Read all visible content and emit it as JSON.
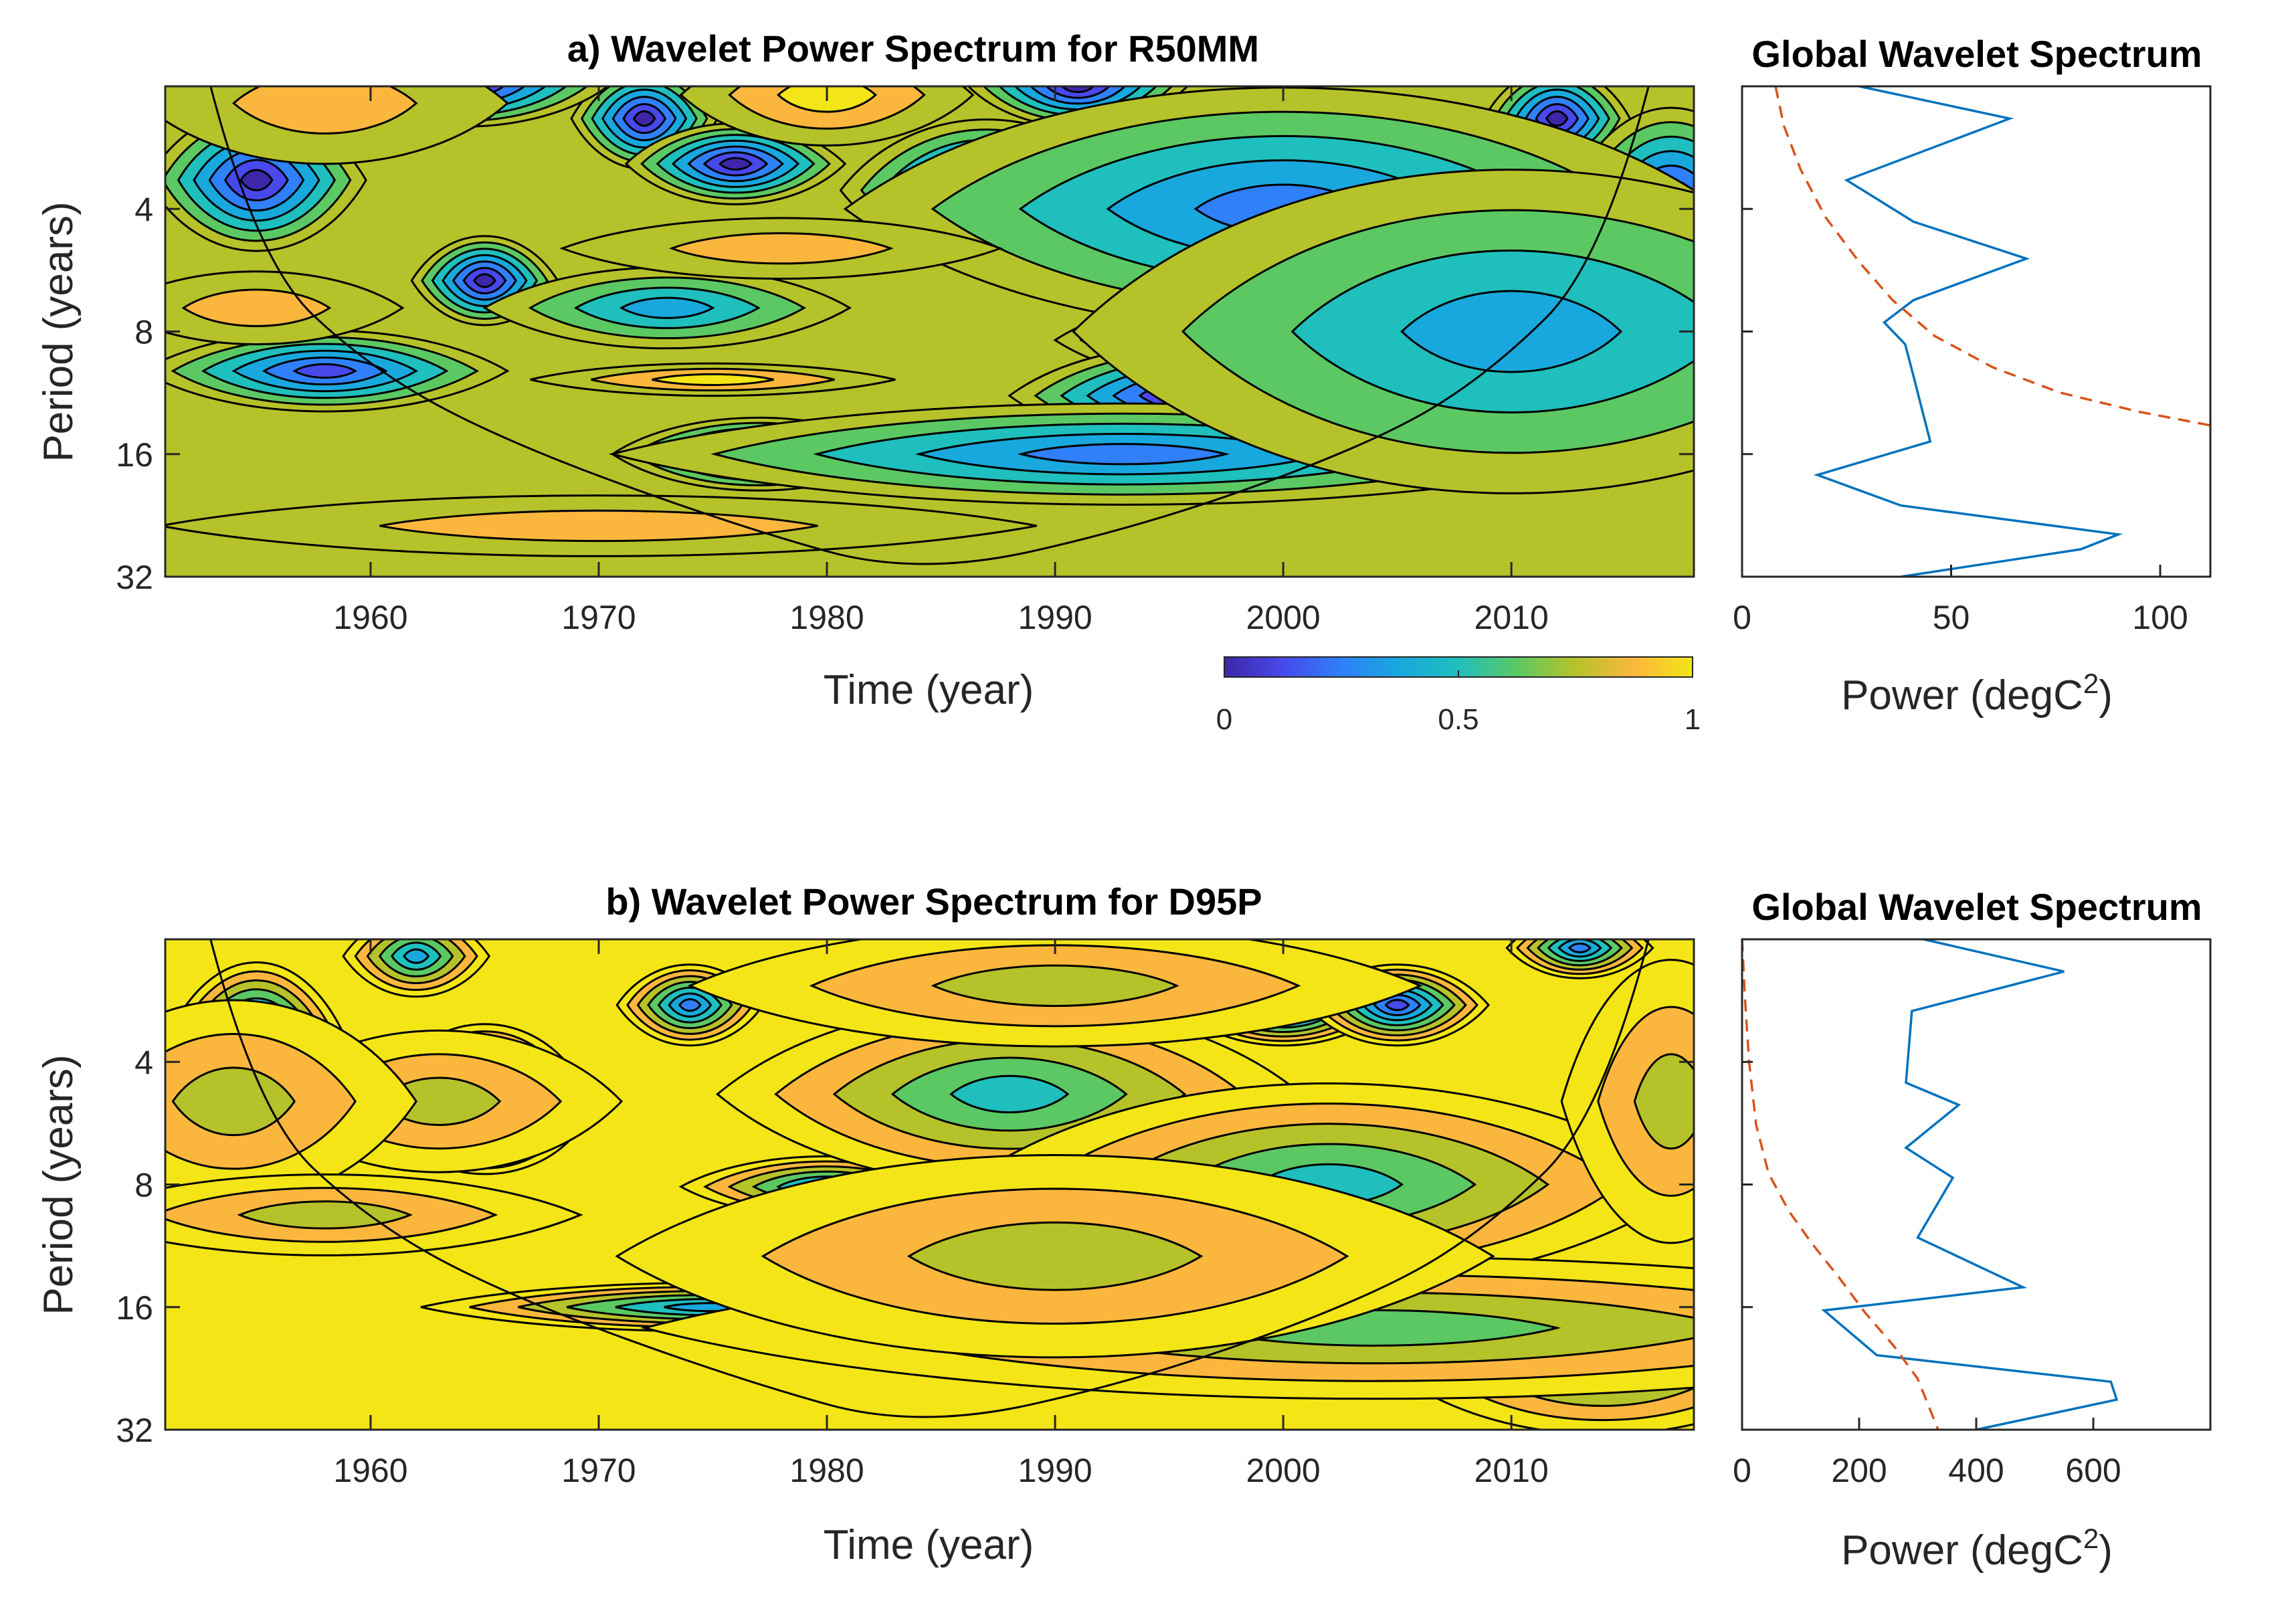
{
  "chart_data": [
    {
      "id": "a_wps",
      "type": "heatmap",
      "title": "a) Wavelet Power Spectrum for  R50MM",
      "xlabel": "Time (year)",
      "ylabel": "Period (years)",
      "xlim": [
        1951,
        2018
      ],
      "ylim": [
        2,
        32
      ],
      "yscale": "log2",
      "xticks": [
        "1960",
        "1970",
        "1980",
        "1990",
        "2000",
        "2010"
      ],
      "yticks": [
        "4",
        "8",
        "16",
        "32"
      ],
      "colormap": "parula",
      "colors": [
        "#3e26a8",
        "#4749eb",
        "#2f80f9",
        "#19a8dd",
        "#1fbfbd",
        "#5cc863",
        "#b6c229",
        "#fbb73d",
        "#f3e516"
      ],
      "lobes": [
        {
          "t": 1977,
          "p": 16,
          "v": 0.0,
          "at": 4,
          "ap": 0.18
        },
        {
          "t": 1999,
          "p": 16,
          "v": 0.0,
          "at": 6,
          "ap": 0.18
        },
        {
          "t": 1998,
          "p": 8.4,
          "v": 0.0,
          "at": 5,
          "ap": 0.22
        },
        {
          "t": 1996,
          "p": 11.5,
          "v": 0.05,
          "at": 5,
          "ap": 0.25
        },
        {
          "t": 1965,
          "p": 6,
          "v": 0.05,
          "at": 2,
          "ap": 0.22
        },
        {
          "t": 1955,
          "p": 3.4,
          "v": 0.1,
          "at": 3,
          "ap": 0.35
        },
        {
          "t": 1958,
          "p": 10,
          "v": 0.15,
          "at": 5,
          "ap": 0.2
        },
        {
          "t": 1987,
          "p": 3.6,
          "v": 0.1,
          "at": 4,
          "ap": 0.35
        },
        {
          "t": 2004,
          "p": 3,
          "v": 0.0,
          "at": 3,
          "ap": 0.3
        },
        {
          "t": 2012,
          "p": 2.4,
          "v": 0.05,
          "at": 2,
          "ap": 0.25
        },
        {
          "t": 1972,
          "p": 2.4,
          "v": 0.05,
          "at": 2,
          "ap": 0.25
        },
        {
          "t": 1976,
          "p": 3.1,
          "v": 0.1,
          "at": 3,
          "ap": 0.2
        },
        {
          "t": 1964,
          "p": 2,
          "v": 0.1,
          "at": 4,
          "ap": 0.2
        },
        {
          "t": 1991,
          "p": 2,
          "v": 0.1,
          "at": 3,
          "ap": 0.2
        },
        {
          "t": 2017,
          "p": 4,
          "v": 0.1,
          "at": 3,
          "ap": 0.5
        },
        {
          "t": 1973,
          "p": 7,
          "v": 0.35,
          "at": 5,
          "ap": 0.2
        },
        {
          "t": 2000,
          "p": 4,
          "v": 0.3,
          "at": 12,
          "ap": 0.6
        },
        {
          "t": 2010,
          "p": 8,
          "v": 0.4,
          "at": 12,
          "ap": 0.8
        },
        {
          "t": 1993,
          "p": 16,
          "v": 0.3,
          "at": 14,
          "ap": 0.25
        },
        {
          "t": 1955,
          "p": 7,
          "v": 0.85,
          "at": 4,
          "ap": 0.18
        },
        {
          "t": 1978,
          "p": 5,
          "v": 0.85,
          "at": 6,
          "ap": 0.15
        },
        {
          "t": 1980,
          "p": 2.1,
          "v": 0.95,
          "at": 4,
          "ap": 0.25
        },
        {
          "t": 1975,
          "p": 10.5,
          "v": 0.9,
          "at": 5,
          "ap": 0.08
        },
        {
          "t": 1970,
          "p": 24,
          "v": 0.85,
          "at": 12,
          "ap": 0.15
        },
        {
          "t": 1958,
          "p": 2.2,
          "v": 0.85,
          "at": 5,
          "ap": 0.3
        }
      ],
      "lobe_base": 0.75,
      "coi": [
        [
          1951,
          0.75
        ],
        [
          1955,
          5.4
        ],
        [
          1960,
          9.9
        ],
        [
          1966,
          15
        ],
        [
          1976,
          24
        ],
        [
          1984,
          32
        ],
        [
          1994,
          24
        ],
        [
          2004,
          15
        ],
        [
          2009,
          10.2
        ],
        [
          2014,
          5.4
        ],
        [
          2018,
          0.75
        ]
      ]
    },
    {
      "id": "a_gws",
      "type": "line",
      "title": "Global Wavelet Spectrum",
      "xlabel": "Power (degC",
      "xlabel_sup": "2",
      "xlabel_end": ")",
      "xlim": [
        0,
        112
      ],
      "ylim": [
        2,
        32
      ],
      "xticks": [
        "0",
        "50",
        "100"
      ],
      "xtick_values": [
        0,
        50,
        100
      ],
      "series": [
        {
          "name": "global",
          "color": "#0072bd",
          "dash": "",
          "points": [
            [
              28,
              2
            ],
            [
              64,
              2.4
            ],
            [
              25,
              3.4
            ],
            [
              41,
              4.3
            ],
            [
              68,
              5.3
            ],
            [
              41,
              6.7
            ],
            [
              34,
              7.6
            ],
            [
              39,
              8.6
            ],
            [
              41,
              10.3
            ],
            [
              43,
              12.4
            ],
            [
              45,
              14.9
            ],
            [
              18,
              18
            ],
            [
              38,
              21.4
            ],
            [
              90,
              25.2
            ],
            [
              81,
              27.4
            ],
            [
              38,
              32
            ]
          ]
        },
        {
          "name": "significance",
          "color": "#d95319",
          "dash": "18,12",
          "points": [
            [
              8,
              2
            ],
            [
              10,
              2.5
            ],
            [
              14,
              3.2
            ],
            [
              20,
              4.2
            ],
            [
              28,
              5.4
            ],
            [
              36,
              6.7
            ],
            [
              46,
              8.2
            ],
            [
              60,
              9.8
            ],
            [
              76,
              11.3
            ],
            [
              95,
              12.6
            ],
            [
              112,
              13.6
            ]
          ]
        }
      ]
    },
    {
      "id": "b_wps",
      "type": "heatmap",
      "title": "b) Wavelet Power Spectrum for  D95P",
      "xlabel": "Time (year)",
      "ylabel": "Period (years)",
      "xlim": [
        1951,
        2018
      ],
      "ylim": [
        2,
        32
      ],
      "yscale": "log2",
      "xticks": [
        "1960",
        "1970",
        "1980",
        "1990",
        "2000",
        "2010"
      ],
      "yticks": [
        "4",
        "8",
        "16",
        "32"
      ],
      "colormap": "parula",
      "colors": [
        "#3e26a8",
        "#4749eb",
        "#2f80f9",
        "#19a8dd",
        "#1fbfbd",
        "#5cc863",
        "#b6c229",
        "#fbb73d",
        "#f3e516"
      ],
      "lobes": [
        {
          "t": 1955,
          "p": 3.6,
          "v": 0.0,
          "at": 2.5,
          "ap": 0.4
        },
        {
          "t": 1958,
          "p": 9.5,
          "v": 0.05,
          "at": 5,
          "ap": 0.12
        },
        {
          "t": 1965,
          "p": 4.3,
          "v": 0.3,
          "at": 2.5,
          "ap": 0.25
        },
        {
          "t": 1965,
          "p": 6,
          "v": 0.3,
          "at": 2.5,
          "ap": 0.2
        },
        {
          "t": 1962,
          "p": 2.2,
          "v": 0.4,
          "at": 2,
          "ap": 0.2
        },
        {
          "t": 1974,
          "p": 2.9,
          "v": 0.3,
          "at": 2,
          "ap": 0.2
        },
        {
          "t": 1988,
          "p": 4.2,
          "v": 0.05,
          "at": 4,
          "ap": 0.25
        },
        {
          "t": 1984,
          "p": 6.1,
          "v": 0.3,
          "at": 3,
          "ap": 0.18
        },
        {
          "t": 1980,
          "p": 8.1,
          "v": 0.4,
          "at": 4,
          "ap": 0.15
        },
        {
          "t": 1991,
          "p": 3,
          "v": 0.1,
          "at": 2,
          "ap": 0.2
        },
        {
          "t": 2000,
          "p": 2.9,
          "v": 0.1,
          "at": 3,
          "ap": 0.2
        },
        {
          "t": 2005,
          "p": 2.9,
          "v": 0.2,
          "at": 2.5,
          "ap": 0.2
        },
        {
          "t": 2007,
          "p": 7.2,
          "v": 0.1,
          "at": 3,
          "ap": 0.15
        },
        {
          "t": 1997,
          "p": 8.2,
          "v": 0.3,
          "at": 6,
          "ap": 0.25
        },
        {
          "t": 1994,
          "p": 12,
          "v": 0.35,
          "at": 5,
          "ap": 0.2
        },
        {
          "t": 2002,
          "p": 16,
          "v": 0.3,
          "at": 6,
          "ap": 0.15
        },
        {
          "t": 1975,
          "p": 16,
          "v": 0.4,
          "at": 8,
          "ap": 0.12
        },
        {
          "t": 2013,
          "p": 2.1,
          "v": 0.3,
          "at": 2,
          "ap": 0.15
        },
        {
          "t": 1988,
          "p": 4.8,
          "v": 0.5,
          "at": 8,
          "ap": 0.45
        },
        {
          "t": 2002,
          "p": 8,
          "v": 0.55,
          "at": 10,
          "ap": 0.5
        },
        {
          "t": 2014,
          "p": 22,
          "v": 0.45,
          "at": 6,
          "ap": 0.35
        },
        {
          "t": 2004,
          "p": 18,
          "v": 0.6,
          "at": 20,
          "ap": 0.35
        },
        {
          "t": 1963,
          "p": 5,
          "v": 0.7,
          "at": 5,
          "ap": 0.35
        },
        {
          "t": 2017,
          "p": 5,
          "v": 0.7,
          "at": 3,
          "ap": 0.7
        },
        {
          "t": 1990,
          "p": 12,
          "v": 0.7,
          "at": 12,
          "ap": 0.5
        },
        {
          "t": 1990,
          "p": 2.6,
          "v": 0.7,
          "at": 10,
          "ap": 0.3
        },
        {
          "t": 1954,
          "p": 5,
          "v": 0.75,
          "at": 5,
          "ap": 0.5
        },
        {
          "t": 1958,
          "p": 9.5,
          "v": 0.75,
          "at": 7,
          "ap": 0.2
        }
      ],
      "lobe_base": 1.0,
      "coi": [
        [
          1951,
          0.75
        ],
        [
          1955,
          5.4
        ],
        [
          1960,
          9.9
        ],
        [
          1966,
          15
        ],
        [
          1976,
          24
        ],
        [
          1984,
          32
        ],
        [
          1994,
          24
        ],
        [
          2004,
          15
        ],
        [
          2009,
          10.2
        ],
        [
          2014,
          5.4
        ],
        [
          2018,
          0.75
        ]
      ]
    },
    {
      "id": "b_gws",
      "type": "line",
      "title": "Global Wavelet Spectrum",
      "xlabel": "Power (degC",
      "xlabel_sup": "2",
      "xlabel_end": ")",
      "xlim": [
        0,
        800
      ],
      "ylim": [
        2,
        32
      ],
      "xticks": [
        "0",
        "200",
        "400",
        "600"
      ],
      "xtick_values": [
        0,
        200,
        400,
        600
      ],
      "series": [
        {
          "name": "global",
          "color": "#0072bd",
          "dash": "",
          "points": [
            [
              310,
              2
            ],
            [
              550,
              2.4
            ],
            [
              290,
              3
            ],
            [
              280,
              4.5
            ],
            [
              370,
              5.1
            ],
            [
              280,
              6.5
            ],
            [
              360,
              7.7
            ],
            [
              300,
              10.8
            ],
            [
              480,
              14.3
            ],
            [
              140,
              16.3
            ],
            [
              230,
              21
            ],
            [
              630,
              24.4
            ],
            [
              640,
              27
            ],
            [
              400,
              32
            ]
          ]
        },
        {
          "name": "significance",
          "color": "#d95319",
          "dash": "18,12",
          "points": [
            [
              0,
              2
            ],
            [
              5,
              2.8
            ],
            [
              12,
              4
            ],
            [
              24,
              5.7
            ],
            [
              45,
              7.5
            ],
            [
              80,
              9.3
            ],
            [
              120,
              11.2
            ],
            [
              165,
              13.5
            ],
            [
              210,
              16.5
            ],
            [
              260,
              20
            ],
            [
              300,
              24
            ],
            [
              335,
              32
            ]
          ]
        }
      ]
    },
    {
      "id": "colorbar",
      "type": "colorbar",
      "range": [
        0,
        1
      ],
      "ticks": [
        "0",
        "0.5",
        "1"
      ],
      "tick_values": [
        0,
        0.5,
        1
      ],
      "colormap": "parula"
    }
  ]
}
